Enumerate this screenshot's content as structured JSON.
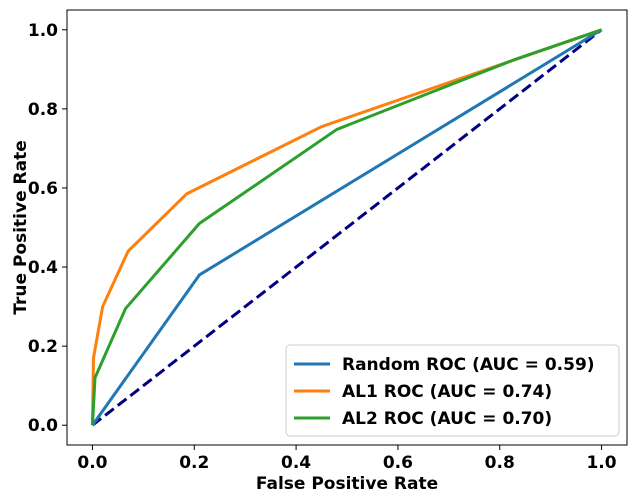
{
  "chart_data": {
    "type": "line",
    "title": "",
    "xlabel": "False Positive Rate",
    "ylabel": "True Positive Rate",
    "xlim": [
      -0.05,
      1.05
    ],
    "ylim": [
      -0.05,
      1.05
    ],
    "x_ticks": [
      "0.0",
      "0.2",
      "0.4",
      "0.6",
      "0.8",
      "1.0"
    ],
    "y_ticks": [
      "0.0",
      "0.2",
      "0.4",
      "0.6",
      "0.8",
      "1.0"
    ],
    "grid": false,
    "legend_position": "lower-right",
    "series": [
      {
        "name": "Random ROC (AUC = 0.59)",
        "color": "#1f77b4",
        "x": [
          0.0,
          0.21,
          1.0
        ],
        "y": [
          0.0,
          0.38,
          1.0
        ]
      },
      {
        "name": "AL1 ROC (AUC = 0.74)",
        "color": "#ff7f0e",
        "x": [
          0.0,
          0.002,
          0.02,
          0.07,
          0.185,
          0.45,
          0.82,
          1.0
        ],
        "y": [
          0.0,
          0.17,
          0.3,
          0.44,
          0.585,
          0.755,
          0.92,
          1.0
        ]
      },
      {
        "name": "AL2 ROC (AUC = 0.70)",
        "color": "#2ca02c",
        "x": [
          0.0,
          0.005,
          0.065,
          0.21,
          0.48,
          0.83,
          1.0
        ],
        "y": [
          0.0,
          0.12,
          0.295,
          0.51,
          0.748,
          0.925,
          1.0
        ]
      },
      {
        "name": "",
        "color": "#000080",
        "dashed": true,
        "x": [
          0.0,
          1.0
        ],
        "y": [
          0.0,
          1.0
        ]
      }
    ]
  }
}
